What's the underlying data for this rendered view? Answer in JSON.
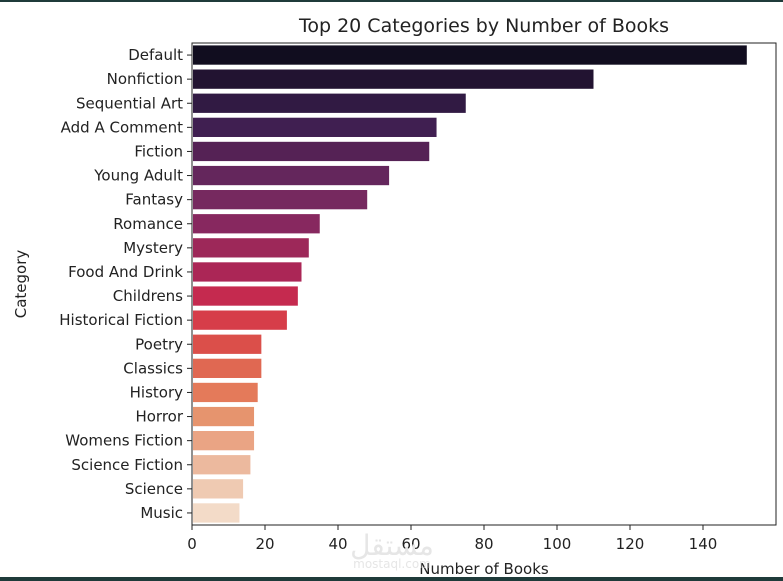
{
  "chart_data": {
    "type": "bar",
    "orientation": "horizontal",
    "title": "Top 20 Categories by Number of Books",
    "xlabel": "Number of Books",
    "ylabel": "Category",
    "xlim": [
      0,
      160
    ],
    "xticks": [
      0,
      20,
      40,
      60,
      80,
      100,
      120,
      140
    ],
    "grid": false,
    "categories": [
      "Default",
      "Nonfiction",
      "Sequential Art",
      "Add A Comment",
      "Fiction",
      "Young Adult",
      "Fantasy",
      "Romance",
      "Mystery",
      "Food And Drink",
      "Childrens",
      "Historical Fiction",
      "Poetry",
      "Classics",
      "History",
      "Horror",
      "Womens Fiction",
      "Science Fiction",
      "Science",
      "Music"
    ],
    "values": [
      152,
      110,
      75,
      67,
      65,
      54,
      48,
      35,
      32,
      30,
      29,
      26,
      19,
      19,
      18,
      17,
      17,
      16,
      14,
      13
    ],
    "colors": [
      "#110d1f",
      "#221331",
      "#311a43",
      "#401f51",
      "#552255",
      "#64265c",
      "#76295f",
      "#87285f",
      "#9d2859",
      "#ab2656",
      "#c52a4f",
      "#d63d49",
      "#db4f4a",
      "#e06852",
      "#e47a5a",
      "#e6946e",
      "#eaa484",
      "#ecb99e",
      "#efcab2",
      "#f3dbc8"
    ]
  },
  "watermark": {
    "arabic": "مستقل",
    "latin": "mostaql.com"
  }
}
